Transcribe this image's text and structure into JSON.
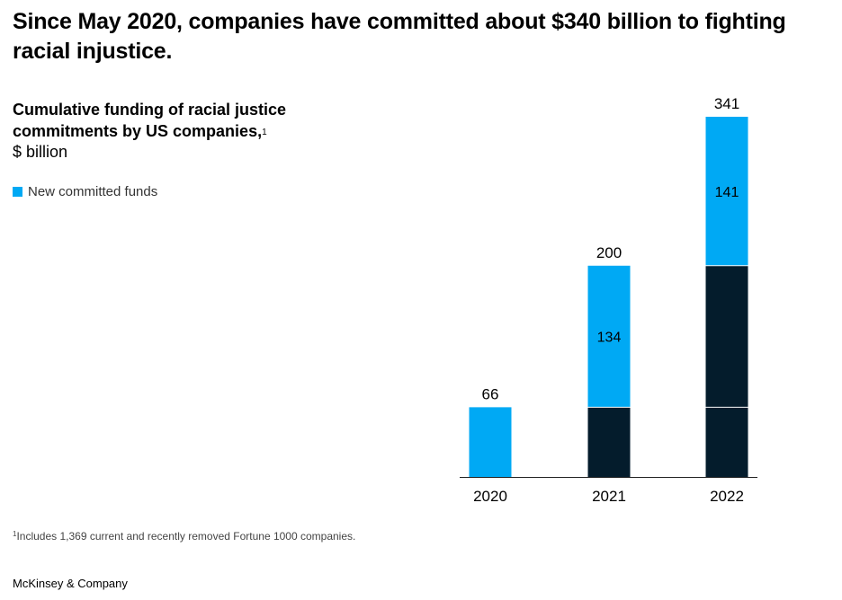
{
  "headline": "Since May 2020, companies have committed about $340 billion to fighting racial injustice.",
  "subtitle": "Cumulative funding of racial justice commitments by US companies,",
  "subtitle_footnote_mark": "1",
  "unit": "$ billion",
  "legend": {
    "label": "New committed funds",
    "color": "#00a9f4"
  },
  "footnote_mark": "1",
  "footnote": "Includes 1,369 current and recently removed Fortune 1000 companies.",
  "brand": "McKinsey & Company",
  "colors": {
    "new": "#00a9f4",
    "prior": "#041c2c",
    "axis": "#222222"
  },
  "chart_data": {
    "type": "bar",
    "stacked": true,
    "categories": [
      "2020",
      "2021",
      "2022"
    ],
    "series": [
      {
        "values": [
          0,
          66,
          200
        ],
        "color": "#041c2c"
      },
      {
        "name": "New committed funds",
        "values": [
          66,
          134,
          141
        ],
        "color": "#00a9f4"
      }
    ],
    "totals": [
      66,
      200,
      341
    ],
    "segment_labels": [
      "",
      "134",
      "141"
    ],
    "total_labels": [
      "66",
      "200",
      "341"
    ],
    "ylim": [
      0,
      341
    ],
    "grid": false,
    "legend_position": "top-left",
    "xlabel": "",
    "ylabel": ""
  }
}
